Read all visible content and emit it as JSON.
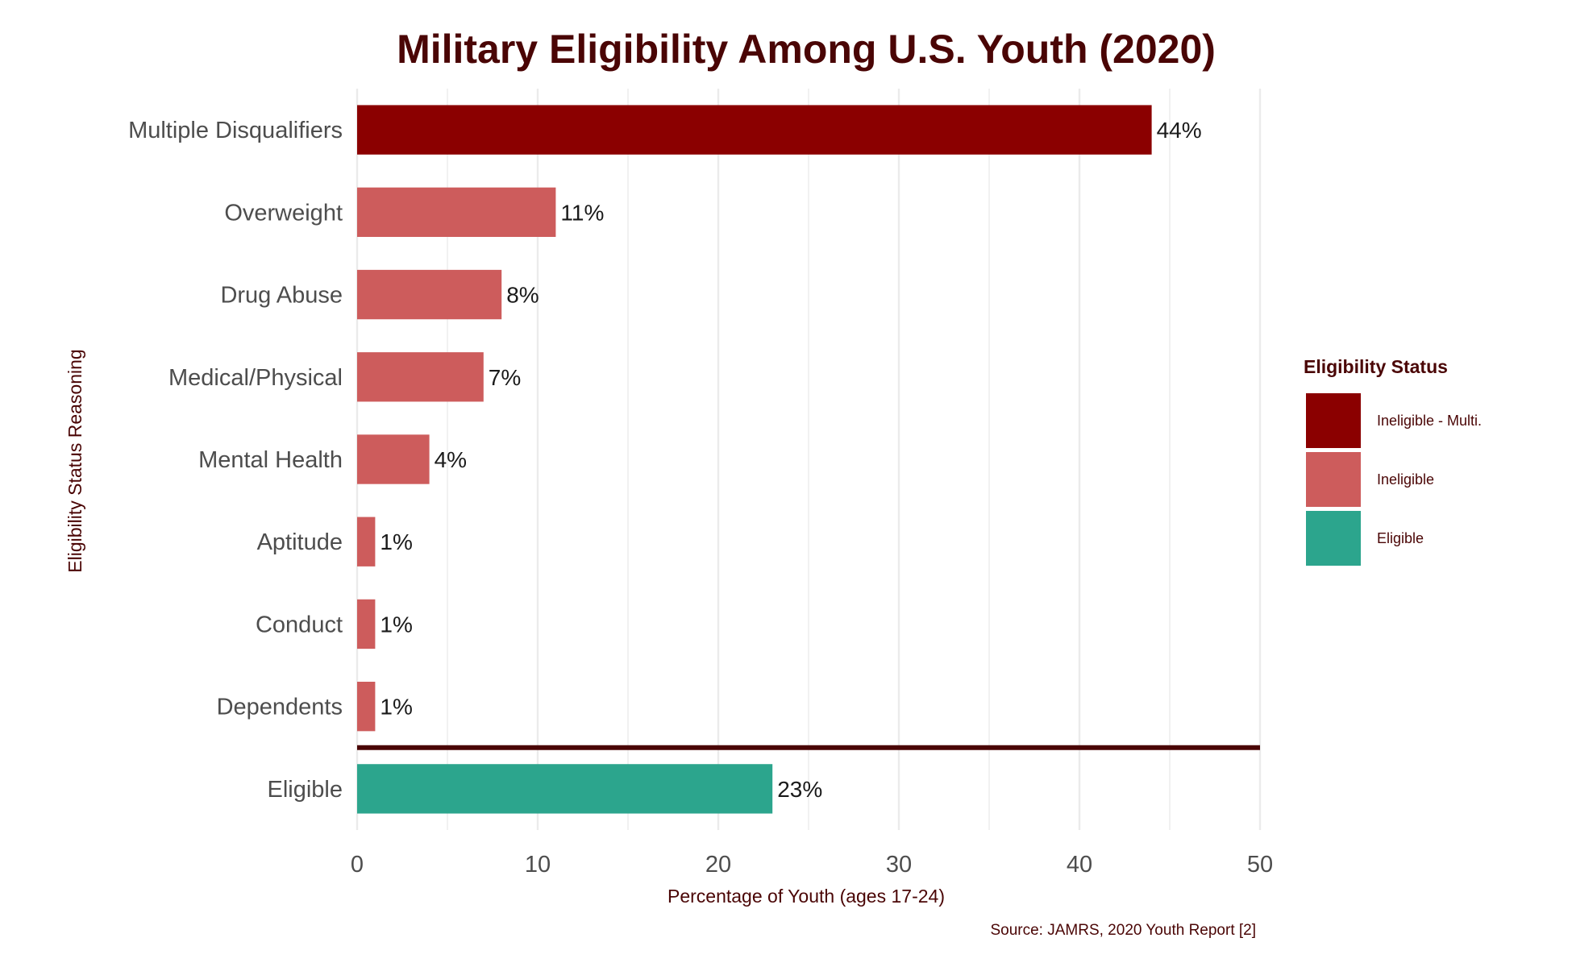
{
  "chart_data": {
    "type": "bar",
    "orientation": "horizontal",
    "title": "Military Eligibility Among U.S. Youth (2020)",
    "xlabel": "Percentage of Youth (ages 17-24)",
    "ylabel": "Eligibility Status Reasoning",
    "source": "Source: JAMRS, 2020 Youth Report [2]",
    "xlim": [
      0,
      50
    ],
    "xticks": [
      0,
      10,
      20,
      30,
      40,
      50
    ],
    "grid": true,
    "categories": [
      "Multiple Disqualifiers",
      "Overweight",
      "Drug Abuse",
      "Medical/Physical",
      "Mental Health",
      "Aptitude",
      "Conduct",
      "Dependents",
      "Eligible"
    ],
    "values": [
      44,
      11,
      8,
      7,
      4,
      1,
      1,
      1,
      23
    ],
    "value_labels": [
      "44%",
      "11%",
      "8%",
      "7%",
      "4%",
      "1%",
      "1%",
      "1%",
      "23%"
    ],
    "groups": [
      "Ineligible - Multi.",
      "Ineligible",
      "Ineligible",
      "Ineligible",
      "Ineligible",
      "Ineligible",
      "Ineligible",
      "Ineligible",
      "Eligible"
    ],
    "separator_after_index": 7,
    "legend": {
      "title": "Eligibility Status",
      "position": "right",
      "entries": [
        {
          "label": "Ineligible - Multi.",
          "color": "#8b0000"
        },
        {
          "label": "Ineligible",
          "color": "#cd5c5c"
        },
        {
          "label": "Eligible",
          "color": "#2ca58d"
        }
      ]
    },
    "colors": {
      "text": "#4a0505",
      "separator": "#4a0505",
      "grid": "#ebebeb"
    }
  }
}
